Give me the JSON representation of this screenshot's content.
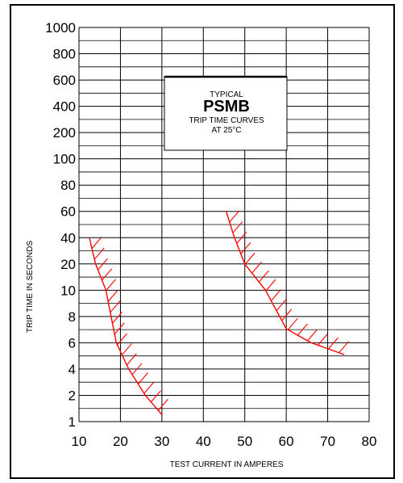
{
  "chart_data": {
    "type": "area",
    "xlabel": "TEST CURRENT IN AMPERES",
    "ylabel": "TRIP TIME IN SECONDS",
    "x_ticks": [
      10,
      20,
      30,
      40,
      50,
      60,
      70,
      80
    ],
    "y_ticks": [
      "1000",
      "800",
      "600",
      "400",
      "200",
      "100",
      "80",
      "60",
      "40",
      "20",
      "10",
      "8",
      "6",
      "4",
      "2",
      "1"
    ],
    "xlim": [
      10,
      80
    ],
    "annotation": {
      "line1": "TYPICAL",
      "line2": "PSMB",
      "line3": "TRIP TIME CURVES",
      "line4": "AT 25°C"
    },
    "series": [
      {
        "points": [
          [
            12.5,
            40
          ],
          [
            14,
            20
          ],
          [
            16.5,
            10
          ],
          [
            19,
            6
          ],
          [
            22,
            4
          ],
          [
            26,
            2
          ],
          [
            30,
            1.2
          ]
        ]
      },
      {
        "points": [
          [
            45.5,
            60
          ],
          [
            47.5,
            40
          ],
          [
            50,
            20
          ],
          [
            55,
            10
          ],
          [
            60,
            7
          ],
          [
            66,
            6
          ],
          [
            74,
            5
          ]
        ]
      }
    ],
    "hatch_direction": "upper-right",
    "curve_color": "#ff0000",
    "grid": true
  }
}
